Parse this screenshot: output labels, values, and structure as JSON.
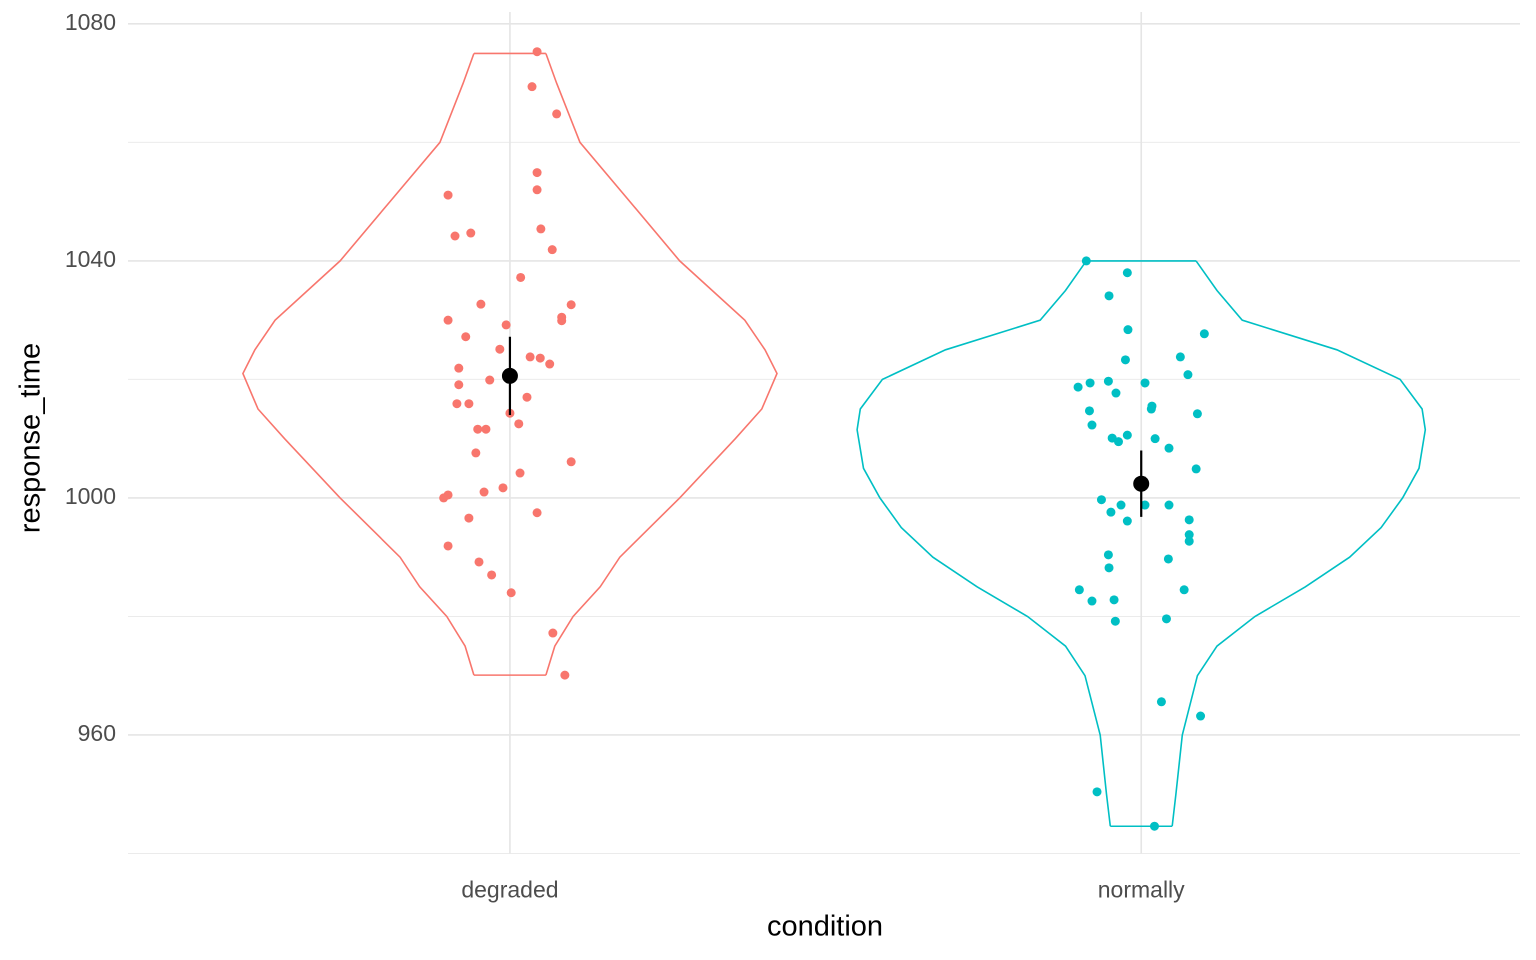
{
  "chart_data": {
    "type": "violin",
    "xlabel": "condition",
    "ylabel": "response_time",
    "categories": [
      "degraded",
      "normally"
    ],
    "xlim": [
      0.395,
      2.6
    ],
    "ylim": [
      940,
      1082
    ],
    "yticks": [
      960,
      1000,
      1040,
      1080
    ],
    "minor_yticks": [
      940,
      980,
      1020,
      1060
    ],
    "grid": true,
    "groups": [
      {
        "color": "#f8766d",
        "violin": {
          "y": [
            1075,
            1070,
            1060,
            1050,
            1040,
            1030,
            1025,
            1021,
            1015,
            1010,
            1000,
            990,
            985,
            980,
            975,
            970.1
          ],
          "half_width": [
            0.057,
            0.074,
            0.111,
            0.19,
            0.269,
            0.372,
            0.404,
            0.423,
            0.399,
            0.357,
            0.269,
            0.174,
            0.143,
            0.1,
            0.071,
            0.057
          ]
        },
        "points": {
          "x": [
            1.043,
            1.035,
            1.074,
            1.043,
            1.043,
            0.902,
            1.049,
            0.938,
            0.913,
            1.067,
            1.017,
            0.954,
            1.097,
            1.082,
            0.902,
            1.082,
            0.994,
            0.93,
            0.984,
            1.032,
            1.048,
            1.063,
            0.919,
            0.968,
            0.919,
            1.027,
            0.916,
            0.935,
            1.0,
            1.014,
            0.949,
            0.962,
            0.946,
            1.097,
            1.016,
            0.989,
            0.959,
            0.902,
            0.895,
            1.043,
            0.935,
            0.902,
            0.951,
            0.971,
            1.002,
            1.068,
            1.087
          ],
          "y": [
            1075.3,
            1069.4,
            1064.8,
            1054.9,
            1052.0,
            1051.1,
            1045.4,
            1044.7,
            1044.2,
            1041.9,
            1037.2,
            1032.7,
            1032.6,
            1030.5,
            1030.0,
            1029.9,
            1029.2,
            1027.2,
            1025.1,
            1023.8,
            1023.6,
            1022.6,
            1021.9,
            1019.9,
            1019.1,
            1017.0,
            1015.9,
            1015.9,
            1014.3,
            1012.5,
            1011.6,
            1011.6,
            1007.6,
            1006.1,
            1004.2,
            1001.7,
            1001.0,
            1000.5,
            1000.0,
            997.5,
            996.6,
            991.9,
            989.2,
            987.0,
            984.0,
            977.2,
            970.1
          ]
        },
        "mean": 1020.6,
        "error": 6.6
      },
      {
        "color": "#00bfc4",
        "violin": {
          "y": [
            1040,
            1035,
            1030,
            1025,
            1020,
            1015,
            1011.5,
            1005,
            1000,
            995,
            990,
            985,
            980,
            975,
            970,
            960,
            950,
            944.6
          ],
          "half_width": [
            0.087,
            0.12,
            0.16,
            0.31,
            0.41,
            0.445,
            0.45,
            0.44,
            0.414,
            0.38,
            0.33,
            0.26,
            0.18,
            0.12,
            0.089,
            0.065,
            0.055,
            0.049
          ]
        },
        "points": {
          "x": [
            1.913,
            1.978,
            1.949,
            1.979,
            2.1,
            1.975,
            2.062,
            2.074,
            1.948,
            1.919,
            1.9,
            2.006,
            1.96,
            2.017,
            2.016,
            1.918,
            2.089,
            1.922,
            1.978,
            1.954,
            2.022,
            1.964,
            2.044,
            2.087,
            1.937,
            1.968,
            2.006,
            2.044,
            1.952,
            1.978,
            2.076,
            2.076,
            2.076,
            1.948,
            2.043,
            1.949,
            1.902,
            2.068,
            1.922,
            1.957,
            1.959,
            2.04,
            2.032,
            2.094,
            1.93,
            2.021
          ],
          "y": [
            1040.0,
            1038.0,
            1034.1,
            1028.4,
            1027.7,
            1023.3,
            1023.8,
            1020.8,
            1019.7,
            1019.4,
            1018.7,
            1019.4,
            1017.7,
            1015.5,
            1015.0,
            1014.7,
            1014.2,
            1012.3,
            1010.6,
            1010.1,
            1010.0,
            1009.5,
            1008.4,
            1004.9,
            999.7,
            998.8,
            998.8,
            998.8,
            997.6,
            996.1,
            996.3,
            993.8,
            992.7,
            990.4,
            989.7,
            988.2,
            984.5,
            984.5,
            982.6,
            982.8,
            979.2,
            979.6,
            965.6,
            963.2,
            950.4,
            944.6
          ]
        },
        "mean": 1002.4,
        "error": 5.6
      }
    ]
  }
}
